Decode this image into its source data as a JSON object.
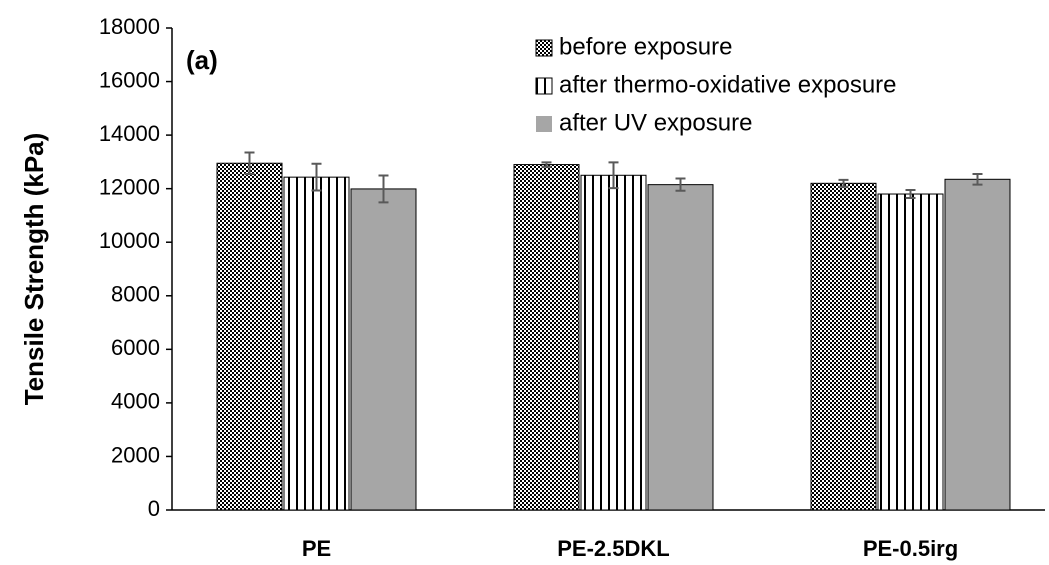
{
  "chart_data": {
    "type": "bar",
    "annotation": "(a)",
    "y_label": "Tensile Strength (kPa)",
    "categories": [
      "PE",
      "PE-2.5DKL",
      "PE-0.5irg"
    ],
    "series": [
      {
        "name": "before exposure",
        "pattern": "checker",
        "color": "#000000",
        "values": [
          12950,
          12900,
          12200
        ],
        "errors": [
          400,
          80,
          130
        ]
      },
      {
        "name": "after thermo-oxidative exposure",
        "pattern": "vertical-lines",
        "color": "#000000",
        "values": [
          12430,
          12500,
          11800
        ],
        "errors": [
          500,
          480,
          150
        ]
      },
      {
        "name": "after UV exposure",
        "pattern": "solid",
        "color": "#a6a6a6",
        "values": [
          11990,
          12150,
          12350
        ],
        "errors": [
          500,
          230,
          200
        ]
      }
    ],
    "ylim": [
      0,
      18000
    ],
    "yticks": [
      0,
      2000,
      4000,
      6000,
      8000,
      10000,
      12000,
      14000,
      16000,
      18000
    ],
    "grid": false
  }
}
